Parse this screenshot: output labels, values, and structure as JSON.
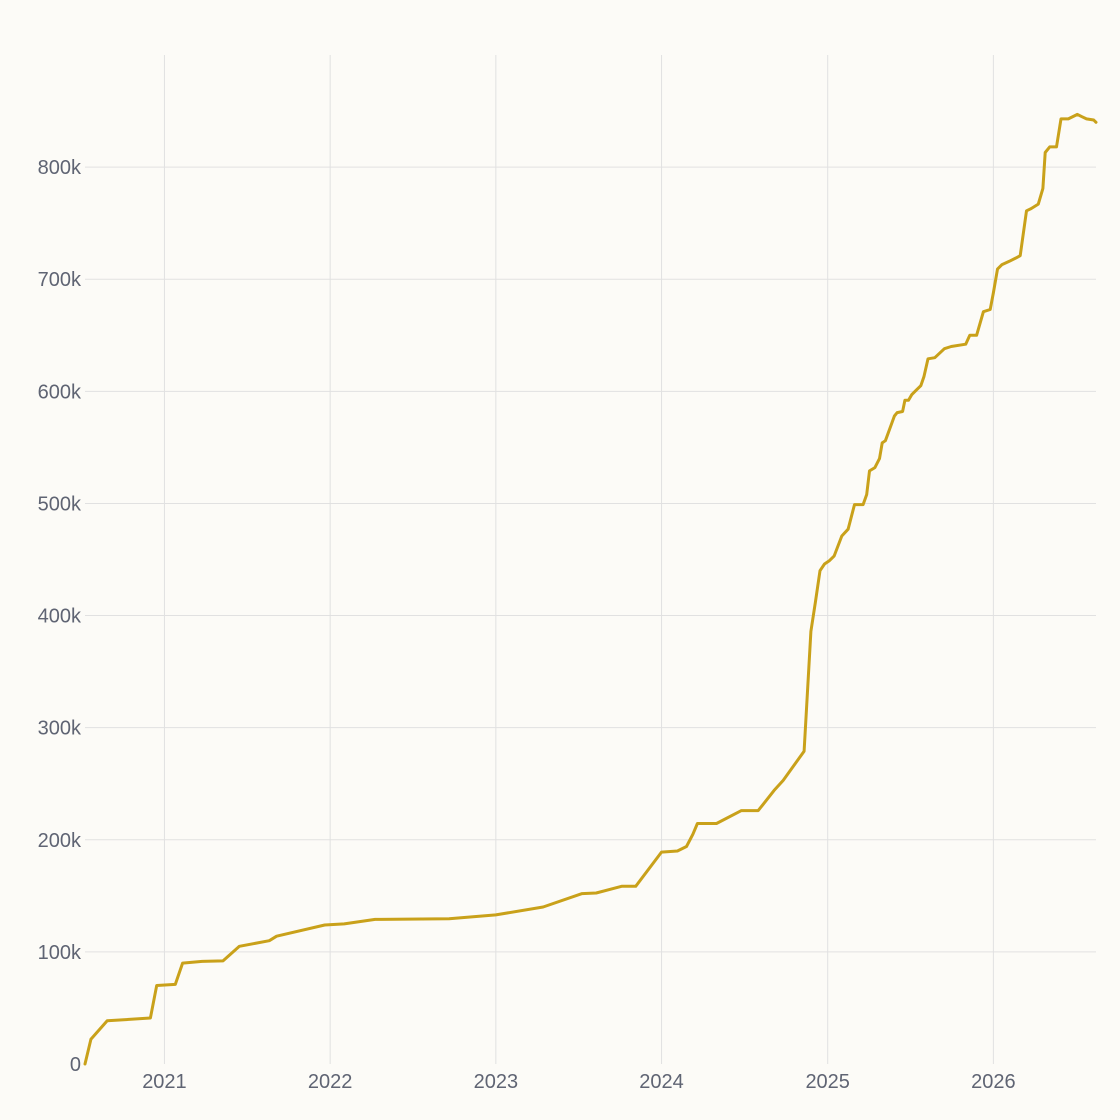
{
  "chart_data": {
    "type": "line",
    "title": "",
    "xlabel": "",
    "ylabel": "",
    "x_axis": {
      "type": "date",
      "range": [
        "2020-07-10",
        "2026-08-15"
      ],
      "ticks": [
        {
          "date": "2021-01-01",
          "label": "2021"
        },
        {
          "date": "2022-01-01",
          "label": "2022"
        },
        {
          "date": "2023-01-01",
          "label": "2023"
        },
        {
          "date": "2024-01-01",
          "label": "2024"
        },
        {
          "date": "2025-01-01",
          "label": "2025"
        },
        {
          "date": "2026-01-01",
          "label": "2026"
        }
      ],
      "grid": true
    },
    "y_axis": {
      "range": [
        0,
        900000
      ],
      "ticks": [
        {
          "value": 0,
          "label": "0"
        },
        {
          "value": 100000,
          "label": "100k"
        },
        {
          "value": 200000,
          "label": "200k"
        },
        {
          "value": 300000,
          "label": "300k"
        },
        {
          "value": 400000,
          "label": "400k"
        },
        {
          "value": 500000,
          "label": "500k"
        },
        {
          "value": 600000,
          "label": "600k"
        },
        {
          "value": 700000,
          "label": "700k"
        },
        {
          "value": 800000,
          "label": "800k"
        }
      ],
      "grid": true
    },
    "legend": "none",
    "series": [
      {
        "color": "#c9a11a",
        "points": [
          [
            "2020-07-10",
            0
          ],
          [
            "2020-07-23",
            22000
          ],
          [
            "2020-08-28",
            38500
          ],
          [
            "2020-12-01",
            41000
          ],
          [
            "2020-12-15",
            70000
          ],
          [
            "2021-01-25",
            71000
          ],
          [
            "2021-02-10",
            90000
          ],
          [
            "2021-03-25",
            91500
          ],
          [
            "2021-05-10",
            92000
          ],
          [
            "2021-06-15",
            105000
          ],
          [
            "2021-08-20",
            110000
          ],
          [
            "2021-09-05",
            114000
          ],
          [
            "2021-12-20",
            124000
          ],
          [
            "2022-02-01",
            125000
          ],
          [
            "2022-04-10",
            129000
          ],
          [
            "2022-09-20",
            129500
          ],
          [
            "2023-01-01",
            133000
          ],
          [
            "2023-04-15",
            140000
          ],
          [
            "2023-07-10",
            152000
          ],
          [
            "2023-08-10",
            152500
          ],
          [
            "2023-10-05",
            158500
          ],
          [
            "2023-11-05",
            158500
          ],
          [
            "2024-01-01",
            189000
          ],
          [
            "2024-02-05",
            190000
          ],
          [
            "2024-02-25",
            194000
          ],
          [
            "2024-03-10",
            205000
          ],
          [
            "2024-03-20",
            214500
          ],
          [
            "2024-05-01",
            214500
          ],
          [
            "2024-06-25",
            226000
          ],
          [
            "2024-08-01",
            226000
          ],
          [
            "2024-09-05",
            244000
          ],
          [
            "2024-09-25",
            253000
          ],
          [
            "2024-11-10",
            279000
          ],
          [
            "2024-11-25",
            386000
          ],
          [
            "2024-12-05",
            412000
          ],
          [
            "2024-12-15",
            440000
          ],
          [
            "2024-12-25",
            446000
          ],
          [
            "2025-01-05",
            449000
          ],
          [
            "2025-01-15",
            453000
          ],
          [
            "2025-02-01",
            471000
          ],
          [
            "2025-02-15",
            477000
          ],
          [
            "2025-03-01",
            499000
          ],
          [
            "2025-03-20",
            499000
          ],
          [
            "2025-03-28",
            508000
          ],
          [
            "2025-04-03",
            529000
          ],
          [
            "2025-04-15",
            532000
          ],
          [
            "2025-04-25",
            540000
          ],
          [
            "2025-05-01",
            554000
          ],
          [
            "2025-05-08",
            556000
          ],
          [
            "2025-05-28",
            578000
          ],
          [
            "2025-06-03",
            581000
          ],
          [
            "2025-06-15",
            582000
          ],
          [
            "2025-06-20",
            592000
          ],
          [
            "2025-06-28",
            592000
          ],
          [
            "2025-07-05",
            597000
          ],
          [
            "2025-07-15",
            601000
          ],
          [
            "2025-07-25",
            605000
          ],
          [
            "2025-08-01",
            613000
          ],
          [
            "2025-08-10",
            629000
          ],
          [
            "2025-08-25",
            630000
          ],
          [
            "2025-09-15",
            638000
          ],
          [
            "2025-09-30",
            640000
          ],
          [
            "2025-11-01",
            642000
          ],
          [
            "2025-11-10",
            650000
          ],
          [
            "2025-11-25",
            650000
          ],
          [
            "2025-12-10",
            671000
          ],
          [
            "2025-12-25",
            673000
          ],
          [
            "2026-01-01",
            688000
          ],
          [
            "2026-01-10",
            709000
          ],
          [
            "2026-01-20",
            713000
          ],
          [
            "2026-02-05",
            716000
          ],
          [
            "2026-02-20",
            719000
          ],
          [
            "2026-03-01",
            721000
          ],
          [
            "2026-03-15",
            761000
          ],
          [
            "2026-03-25",
            763000
          ],
          [
            "2026-04-10",
            767000
          ],
          [
            "2026-04-20",
            781000
          ],
          [
            "2026-04-25",
            813000
          ],
          [
            "2026-05-05",
            818000
          ],
          [
            "2026-05-20",
            818000
          ],
          [
            "2026-05-30",
            843000
          ],
          [
            "2026-06-15",
            843000
          ],
          [
            "2026-07-05",
            847000
          ],
          [
            "2026-07-15",
            845000
          ],
          [
            "2026-07-25",
            843000
          ],
          [
            "2026-08-10",
            842000
          ],
          [
            "2026-08-15",
            840000
          ]
        ]
      }
    ]
  }
}
